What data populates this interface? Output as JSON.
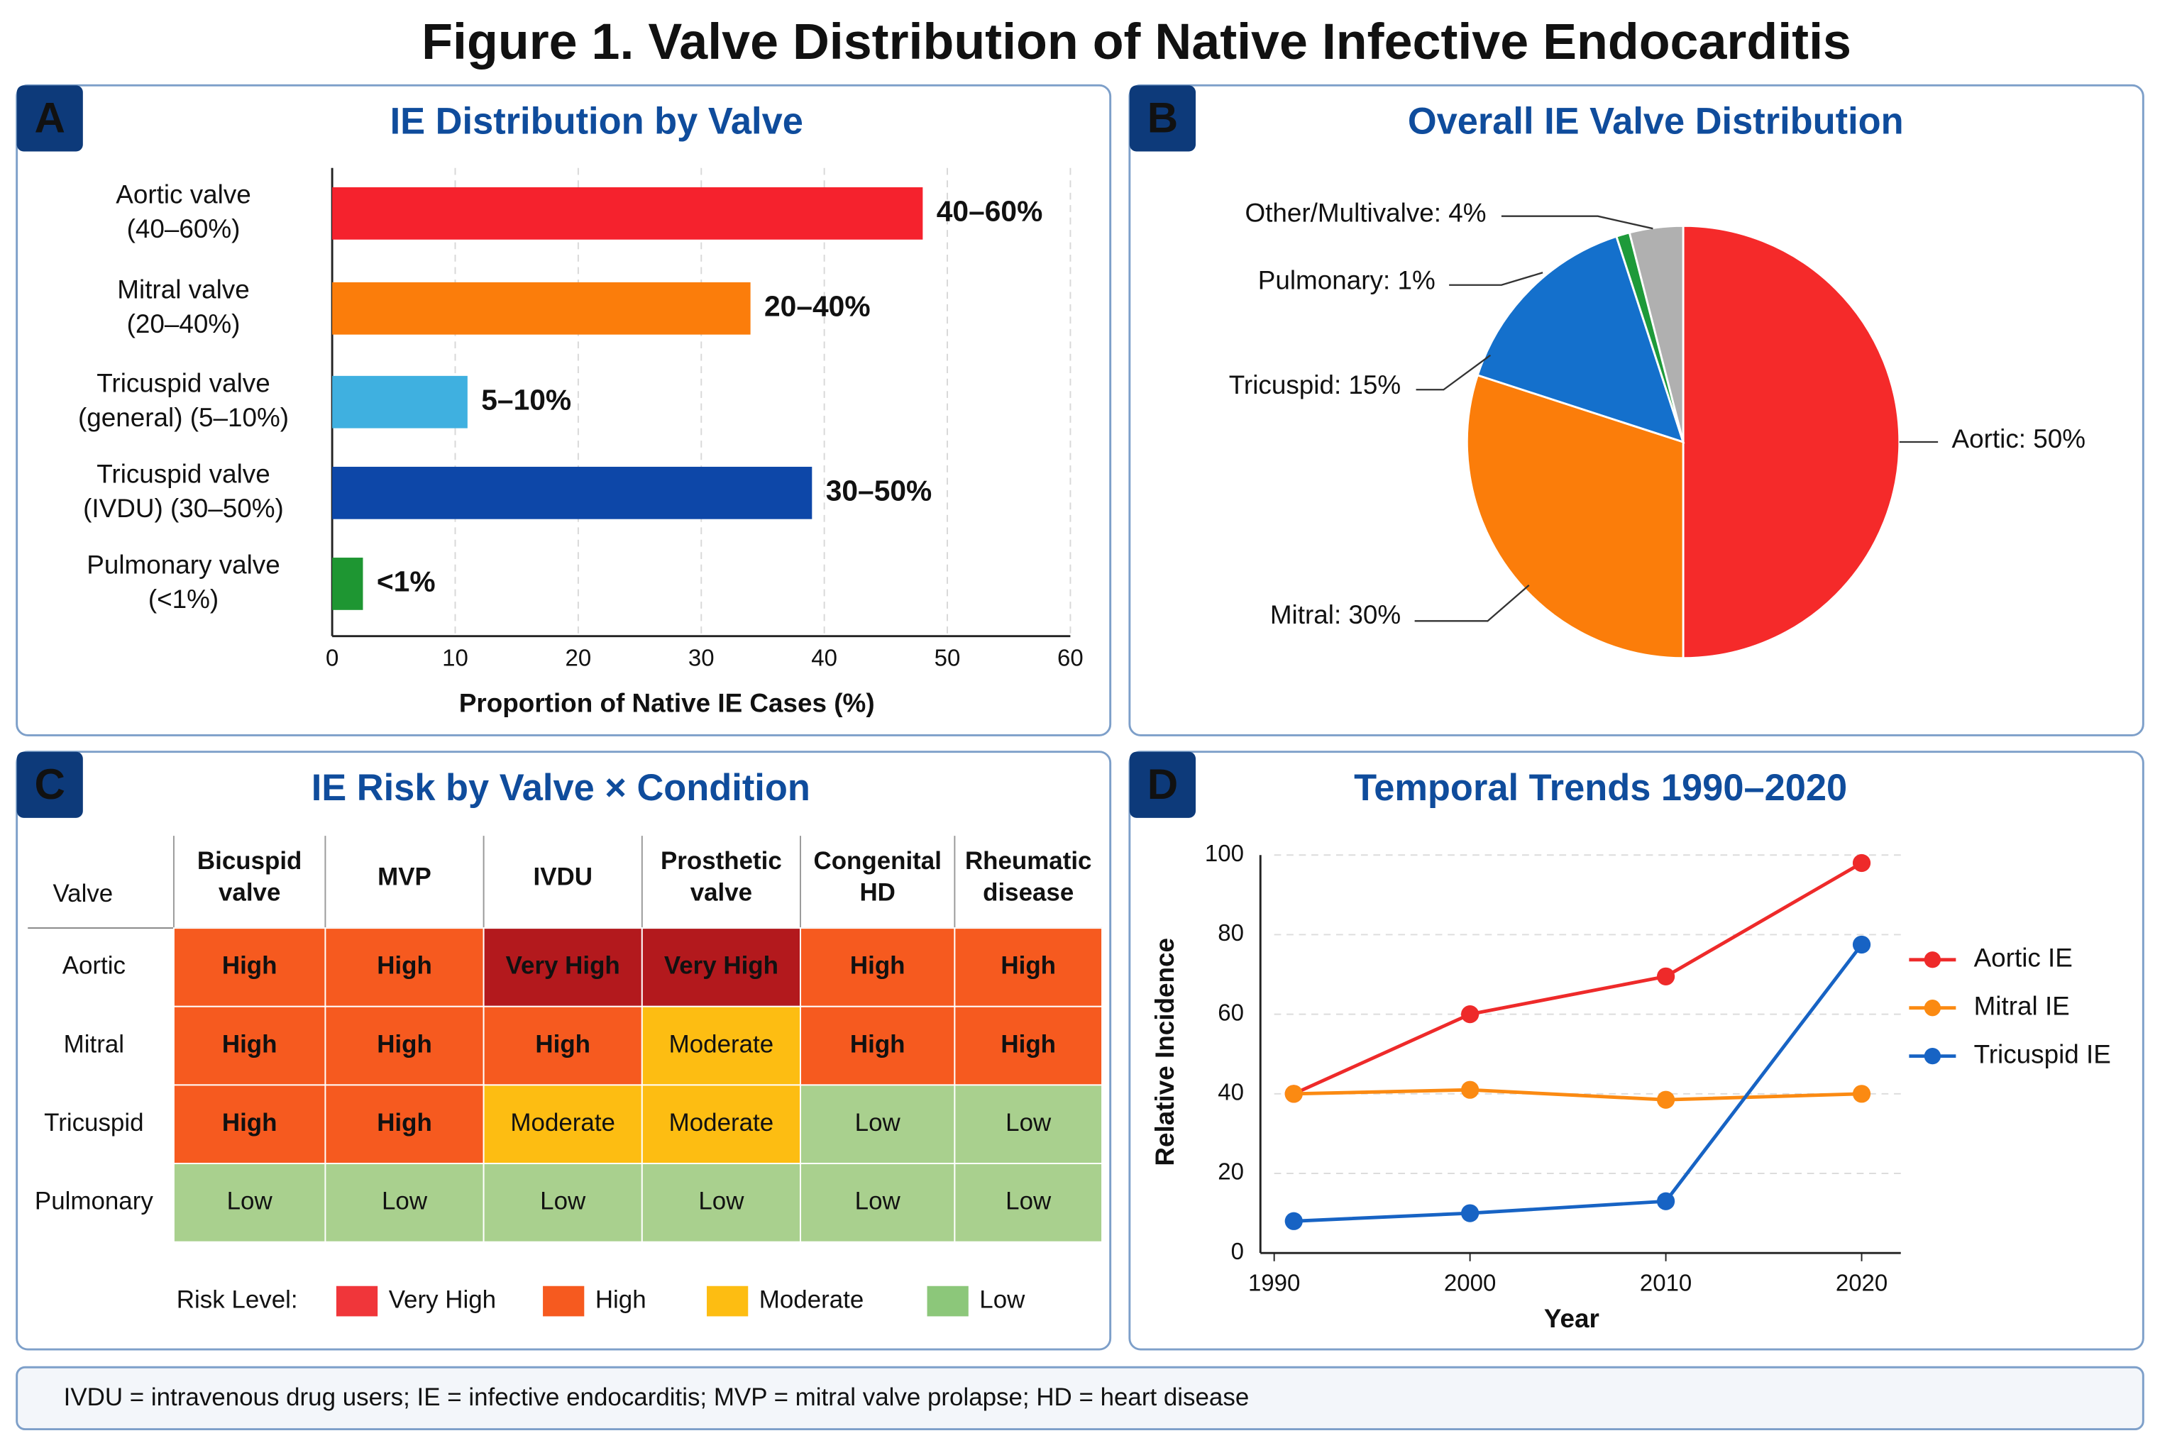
{
  "title": "Figure 1. Valve Distribution of Native Infective Endocarditis",
  "footnote": "IVDU = intravenous drug users; IE = infective endocarditis; MVP = mitral valve prolapse; HD = heart disease",
  "chart_data": [
    {
      "type": "bar",
      "panel": "A",
      "title": "IE Distribution by Valve",
      "categories": [
        [
          "Aortic valve",
          "(40–60%)"
        ],
        [
          "Mitral valve",
          "(20–40%)"
        ],
        [
          "Tricuspid valve",
          "(general) (5–10%)"
        ],
        [
          "Tricuspid valve",
          "(IVDU) (30–50%)"
        ],
        [
          "Pulmonary valve",
          "(<1%)"
        ]
      ],
      "values": [
        48,
        34,
        11,
        39,
        2.5
      ],
      "bar_labels": [
        "40–60%",
        "20–40%",
        "5–10%",
        "30–50%",
        "<1%"
      ],
      "colors": [
        "#f5222d",
        "#fb7d0b",
        "#3fb0e0",
        "#0d47a8",
        "#1e9632"
      ],
      "xlim": [
        0,
        60
      ],
      "xticks": [
        0,
        10,
        20,
        30,
        40,
        50,
        60
      ],
      "xlabel": "Proportion of Native IE Cases (%)",
      "grid": true
    },
    {
      "type": "pie",
      "panel": "B",
      "title": "Overall IE Valve Distribution",
      "values": [
        50,
        30,
        15,
        1,
        4
      ],
      "value_labels": [
        "Aortic: 50%",
        "Mitral: 30%",
        "Tricuspid: 15%",
        "Pulmonary: 1%",
        "Other/Multivalve: 4%"
      ],
      "colors": [
        "#f52a2a",
        "#fb7d0a",
        "#1470cc",
        "#1e9a3a",
        "#b0b0b0"
      ]
    },
    {
      "type": "heatmap",
      "panel": "C",
      "title": "IE Risk by Valve × Condition",
      "corner_label": "Valve",
      "columns": [
        [
          "Bicuspid",
          "valve"
        ],
        [
          "MVP"
        ],
        [
          "IVDU"
        ],
        [
          "Prosthetic",
          "valve"
        ],
        [
          "Congenital",
          "HD"
        ],
        [
          "Rheumatic",
          "disease"
        ]
      ],
      "rows": [
        "Aortic",
        "Mitral",
        "Tricuspid",
        "Pulmonary"
      ],
      "cells": [
        [
          "High",
          "High",
          "Very High",
          "Very High",
          "High",
          "High"
        ],
        [
          "High",
          "High",
          "High",
          "Moderate",
          "High",
          "High"
        ],
        [
          "High",
          "High",
          "Moderate",
          "Moderate",
          "Low",
          "Low"
        ],
        [
          "Low",
          "Low",
          "Low",
          "Low",
          "Low",
          "Low"
        ]
      ],
      "cell_colors": {
        "Very High": "#b3191d",
        "High": "#f65a1f",
        "Moderate": "#fdbd12",
        "Low": "#a9d08e"
      },
      "legend": {
        "title": "Risk Level:",
        "items": [
          {
            "name": "Very High",
            "color": "#f0363a"
          },
          {
            "name": "High",
            "color": "#f65a1f"
          },
          {
            "name": "Moderate",
            "color": "#fdbd12"
          },
          {
            "name": "Low",
            "color": "#8cc77a"
          }
        ]
      }
    },
    {
      "type": "line",
      "panel": "D",
      "title": "Temporal Trends 1990–2020",
      "x": [
        1991,
        2000,
        2010,
        2020
      ],
      "series": [
        {
          "name": "Aortic IE",
          "color": "#ee2a2a",
          "values": [
            40,
            60,
            69.5,
            98
          ]
        },
        {
          "name": "Mitral IE",
          "color": "#fb8a12",
          "values": [
            40,
            41,
            38.5,
            40
          ]
        },
        {
          "name": "Tricuspid IE",
          "color": "#1763c4",
          "values": [
            8,
            10,
            13,
            77.5
          ]
        }
      ],
      "xlim": [
        1990,
        2022
      ],
      "xticks": [
        1990,
        2000,
        2010,
        2020
      ],
      "ylim": [
        0,
        100
      ],
      "yticks": [
        0,
        20,
        40,
        60,
        80,
        100
      ],
      "xlabel": "Year",
      "ylabel": "Relative Incidence",
      "grid": true,
      "legend": "right"
    }
  ]
}
